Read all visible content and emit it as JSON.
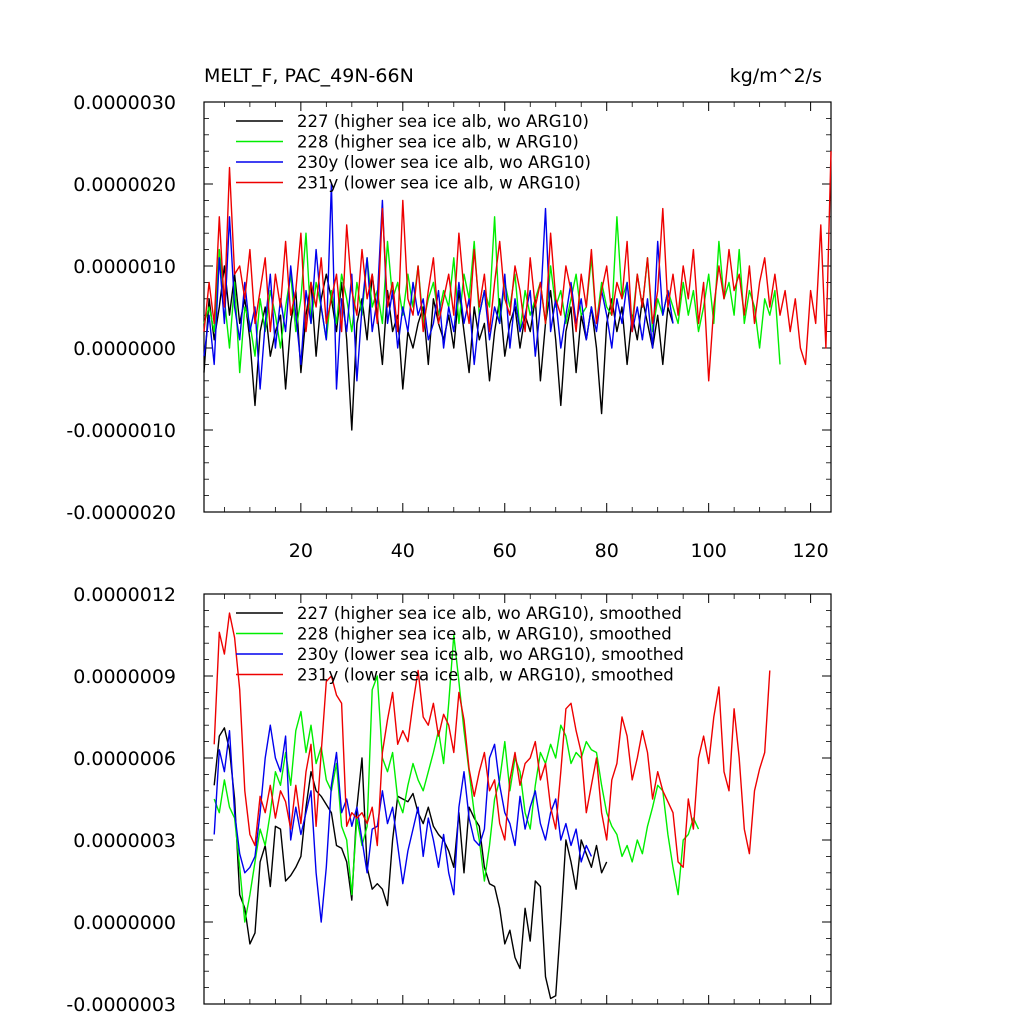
{
  "chart_data": [
    {
      "type": "line",
      "title": "MELT_F, PAC_49N-66N",
      "units": "kg/m^2/s",
      "xlim": [
        1,
        124
      ],
      "ylim": [
        -2e-06,
        3e-06
      ],
      "yticks": [
        "0.0000030",
        "0.0000020",
        "0.0000010",
        "0.0000000",
        "-0.0000010",
        "-0.0000020"
      ],
      "ytick_values": [
        3e-06,
        2e-06,
        1e-06,
        0,
        -1e-06,
        -2e-06
      ],
      "xticks": [
        "20",
        "40",
        "60",
        "80",
        "100",
        "120"
      ],
      "xtick_values": [
        20,
        40,
        60,
        80,
        100,
        120
      ],
      "legend": [
        "227 (higher sea ice alb, wo ARG10)",
        "228 (higher sea ice alb, w ARG10)",
        "230y (lower sea ice alb, wo ARG10)",
        "231y (lower sea ice alb, w ARG10)"
      ],
      "series": [
        {
          "name": "227",
          "color": "#000000",
          "x_start": 1,
          "values": [
            -0.3,
            0.6,
            0.1,
            0.5,
            1.0,
            0.4,
            0.9,
            0.3,
            0.6,
            0.1,
            -0.7,
            0.2,
            0.5,
            -0.1,
            0.2,
            0.4,
            -0.5,
            0.3,
            0.7,
            -0.3,
            0.4,
            0.8,
            -0.1,
            0.6,
            0.9,
            0.6,
            0.2,
            0.8,
            0.1,
            -1.0,
            0.3,
            0.6,
            0.1,
            0.9,
            0.4,
            -0.2,
            0.7,
            0.2,
            0.4,
            -0.5,
            0.2,
            0.0,
            0.3,
            0.5,
            -0.2,
            0.6,
            0.3,
            0.1,
            0.4,
            0.0,
            0.7,
            0.2,
            -0.3,
            0.5,
            0.1,
            0.3,
            -0.4,
            0.2,
            0.6,
            -0.1,
            0.3,
            0.5,
            0.0,
            0.4,
            0.2,
            0.6,
            -0.4,
            0.3,
            0.7,
            0.1,
            -0.7,
            0.2,
            0.5,
            -0.3,
            0.4,
            0.1,
            0.5,
            0.0,
            -0.8,
            0.3,
            0.6,
            0.2,
            0.5,
            -0.2,
            0.4,
            0.1,
            0.6,
            0.3,
            0.0,
            0.4,
            -0.2,
            0.5,
            0.3
          ]
        },
        {
          "name": "228",
          "color": "#00ee00",
          "x_start": 1,
          "values": [
            0.3,
            0.5,
            0.2,
            1.2,
            0.6,
            0.0,
            0.8,
            -0.3,
            0.5,
            0.3,
            -0.1,
            0.6,
            0.2,
            0.7,
            0.4,
            0.0,
            0.5,
            0.9,
            0.2,
            0.6,
            1.4,
            0.3,
            0.8,
            0.5,
            0.1,
            0.7,
            0.3,
            0.9,
            0.6,
            0.2,
            0.8,
            0.4,
            1.1,
            0.5,
            0.7,
            0.3,
            1.3,
            0.6,
            0.8,
            0.4,
            0.9,
            0.5,
            1.0,
            0.3,
            0.6,
            0.8,
            0.4,
            0.7,
            0.5,
            1.1,
            0.3,
            0.9,
            0.6,
            1.3,
            0.4,
            0.7,
            0.5,
            1.6,
            0.3,
            0.8,
            0.5,
            0.9,
            0.2,
            0.7,
            0.4,
            0.6,
            0.8,
            0.3,
            1.0,
            0.5,
            0.7,
            0.3,
            0.6,
            0.9,
            0.4,
            0.5,
            1.1,
            0.3,
            0.8,
            0.5,
            0.4,
            1.6,
            0.6,
            0.8,
            0.3,
            0.9,
            0.5,
            1.1,
            0.2,
            0.6,
            0.4,
            0.7,
            0.5,
            0.3,
            0.8,
            0.4,
            0.7,
            0.2,
            0.5,
            0.9,
            0.3,
            1.3,
            0.6,
            0.8,
            0.4,
            1.2,
            0.3,
            0.7,
            0.5,
            0.0,
            0.6,
            0.4,
            0.7,
            -0.2
          ]
        },
        {
          "name": "230y",
          "color": "#0000ee",
          "x_start": 1,
          "values": [
            -0.1,
            0.4,
            -0.2,
            1.1,
            0.3,
            1.6,
            0.5,
            0.1,
            0.8,
            0.2,
            0.5,
            -0.5,
            0.3,
            0.9,
            0.0,
            0.6,
            0.2,
            1.0,
            0.4,
            -0.2,
            0.7,
            0.3,
            1.2,
            0.5,
            0.1,
            2.0,
            -0.5,
            0.6,
            0.2,
            0.9,
            -0.4,
            0.5,
            1.1,
            0.2,
            0.6,
            1.8,
            0.3,
            0.7,
            0.0,
            0.5,
            0.2,
            0.8,
            0.4,
            0.6,
            0.1,
            0.3,
            0.7,
            0.0,
            0.5,
            0.2,
            0.8,
            0.3,
            0.6,
            -0.2,
            0.4,
            0.7,
            0.1,
            0.5,
            0.3,
            0.9,
            0.0,
            0.6,
            0.2,
            0.4,
            0.7,
            -0.1,
            0.5,
            1.7,
            0.2,
            0.6,
            0.0,
            0.4,
            0.8,
            0.3,
            0.6,
            0.1,
            0.5,
            0.2,
            0.7,
            0.4,
            0.0,
            0.6,
            0.3,
            0.8,
            0.2,
            0.5,
            0.1,
            0.6,
            0.0,
            1.3,
            0.4,
            0.7,
            0.3
          ]
        },
        {
          "name": "231y",
          "color": "#ee0000",
          "x_start": 1,
          "values": [
            0.2,
            0.8,
            0.3,
            1.6,
            0.5,
            2.2,
            0.9,
            1.0,
            0.6,
            1.2,
            0.3,
            0.7,
            1.1,
            0.2,
            0.9,
            0.5,
            1.3,
            0.4,
            0.7,
            1.4,
            0.2,
            0.8,
            0.5,
            1.1,
            0.3,
            0.6,
            0.9,
            0.2,
            1.5,
            0.7,
            0.4,
            1.2,
            0.6,
            0.9,
            0.3,
            1.7,
            0.5,
            0.8,
            0.2,
            1.8,
            0.6,
            0.4,
            1.0,
            0.2,
            0.7,
            1.1,
            0.3,
            0.6,
            0.9,
            0.4,
            1.4,
            0.7,
            0.3,
            1.2,
            0.5,
            0.9,
            0.2,
            0.8,
            1.3,
            0.6,
            0.4,
            1.0,
            0.7,
            0.2,
            1.1,
            0.5,
            0.8,
            0.3,
            1.4,
            0.6,
            0.4,
            1.0,
            0.7,
            0.2,
            0.9,
            0.5,
            1.2,
            0.3,
            0.7,
            1.0,
            0.4,
            0.8,
            0.6,
            1.3,
            0.2,
            0.9,
            0.5,
            1.1,
            0.3,
            0.7,
            1.7,
            0.5,
            0.9,
            0.4,
            1.0,
            0.6,
            1.2,
            0.3,
            0.8,
            -0.4,
            0.5,
            1.0,
            0.6,
            1.2,
            0.7,
            0.9,
            0.4,
            1.0,
            0.3,
            0.8,
            1.1,
            0.5,
            0.9,
            0.4,
            0.7,
            0.2,
            0.6,
            0.0,
            -0.2,
            0.7,
            0.3,
            1.5,
            0.0,
            2.4
          ]
        }
      ],
      "value_scale": 1e-06
    },
    {
      "type": "line",
      "title": "",
      "xlim": [
        1,
        124
      ],
      "ylim": [
        -3e-07,
        1.2e-06
      ],
      "yticks": [
        "0.0000012",
        "0.0000009",
        "0.0000006",
        "0.0000003",
        "0.0000000",
        "-0.0000003"
      ],
      "ytick_values": [
        1.2e-06,
        9e-07,
        6e-07,
        3e-07,
        0,
        -3e-07
      ],
      "legend": [
        "227 (higher sea ice alb, wo ARG10), smoothed",
        "228 (higher sea ice alb, w ARG10), smoothed",
        "230y (lower sea ice alb, wo ARG10), smoothed",
        "231y (lower sea ice alb, w ARG10), smoothed"
      ],
      "series": [
        {
          "name": "227 smoothed",
          "color": "#000000",
          "x_start": 3,
          "values": [
            0.5,
            0.68,
            0.71,
            0.63,
            0.45,
            0.1,
            0.05,
            -0.08,
            -0.04,
            0.22,
            0.28,
            0.13,
            0.35,
            0.34,
            0.15,
            0.17,
            0.2,
            0.24,
            0.42,
            0.55,
            0.48,
            0.46,
            0.43,
            0.4,
            0.28,
            0.27,
            0.22,
            0.08,
            0.42,
            0.6,
            0.2,
            0.12,
            0.14,
            0.12,
            0.06,
            0.3,
            0.46,
            0.45,
            0.44,
            0.47,
            0.4,
            0.36,
            0.42,
            0.35,
            0.32,
            0.3,
            0.26,
            0.2,
            0.4,
            0.18,
            0.42,
            0.38,
            0.35,
            0.2,
            0.14,
            0.13,
            0.05,
            -0.08,
            -0.03,
            -0.13,
            -0.17,
            0.05,
            -0.07,
            0.15,
            0.13,
            -0.2,
            -0.28,
            -0.27,
            0.0,
            0.3,
            0.22,
            0.12,
            0.3,
            0.25,
            0.2,
            0.28,
            0.18,
            0.22
          ]
        },
        {
          "name": "228 smoothed",
          "color": "#00ee00",
          "x_start": 3,
          "values": [
            0.45,
            0.4,
            0.52,
            0.42,
            0.38,
            0.2,
            0.0,
            0.1,
            0.22,
            0.34,
            0.28,
            0.4,
            0.55,
            0.5,
            0.62,
            0.5,
            0.7,
            0.77,
            0.62,
            0.72,
            0.58,
            0.64,
            0.52,
            0.48,
            0.58,
            0.35,
            0.3,
            0.1,
            0.38,
            0.28,
            0.35,
            0.85,
            0.9,
            0.6,
            0.55,
            0.62,
            0.45,
            0.4,
            0.5,
            0.58,
            0.52,
            0.48,
            0.55,
            0.62,
            0.7,
            0.58,
            0.8,
            1.05,
            0.88,
            0.7,
            0.55,
            0.4,
            0.3,
            0.15,
            0.28,
            0.45,
            0.52,
            0.66,
            0.48,
            0.6,
            0.55,
            0.4,
            0.34,
            0.5,
            0.62,
            0.58,
            0.65,
            0.6,
            0.72,
            0.68,
            0.58,
            0.62,
            0.6,
            0.66,
            0.63,
            0.62,
            0.5,
            0.4,
            0.35,
            0.32,
            0.24,
            0.28,
            0.22,
            0.3,
            0.25,
            0.35,
            0.42,
            0.5,
            0.48,
            0.32,
            0.2,
            0.1,
            0.3,
            0.32,
            0.38,
            0.34
          ]
        },
        {
          "name": "230y smoothed",
          "color": "#0000ee",
          "x_start": 3,
          "values": [
            0.32,
            0.63,
            0.55,
            0.7,
            0.4,
            0.25,
            0.18,
            0.2,
            0.24,
            0.4,
            0.6,
            0.72,
            0.6,
            0.55,
            0.68,
            0.3,
            0.42,
            0.32,
            0.4,
            0.48,
            0.18,
            0.0,
            0.2,
            0.5,
            0.62,
            0.4,
            0.45,
            0.35,
            0.42,
            0.3,
            0.18,
            0.34,
            0.35,
            0.48,
            0.36,
            0.42,
            0.28,
            0.14,
            0.26,
            0.34,
            0.42,
            0.24,
            0.38,
            0.3,
            0.2,
            0.32,
            0.18,
            0.1,
            0.42,
            0.55,
            0.38,
            0.3,
            0.28,
            0.34,
            0.6,
            0.65,
            0.5,
            0.4,
            0.36,
            0.28,
            0.46,
            0.34,
            0.42,
            0.48,
            0.36,
            0.3,
            0.4,
            0.45,
            0.3,
            0.36,
            0.28,
            0.34,
            0.22,
            0.28,
            0.24
          ]
        },
        {
          "name": "231y smoothed",
          "color": "#ee0000",
          "x_start": 3,
          "values": [
            0.65,
            1.06,
            0.98,
            1.13,
            1.04,
            0.85,
            0.48,
            0.32,
            0.28,
            0.46,
            0.4,
            0.5,
            0.38,
            0.48,
            0.44,
            0.34,
            0.5,
            0.36,
            0.55,
            0.65,
            0.35,
            0.62,
            0.88,
            0.9,
            0.83,
            0.8,
            0.35,
            0.4,
            0.38,
            0.4,
            0.36,
            0.42,
            0.28,
            0.62,
            0.74,
            0.84,
            0.65,
            0.7,
            0.66,
            0.8,
            0.92,
            0.75,
            0.72,
            0.8,
            0.68,
            0.76,
            0.72,
            0.62,
            0.84,
            0.74,
            0.56,
            0.46,
            0.55,
            0.62,
            0.48,
            0.52,
            0.36,
            0.3,
            0.52,
            0.62,
            0.5,
            0.58,
            0.6,
            0.66,
            0.52,
            0.58,
            0.42,
            0.34,
            0.55,
            0.78,
            0.8,
            0.7,
            0.62,
            0.4,
            0.5,
            0.6,
            0.4,
            0.3,
            0.52,
            0.58,
            0.75,
            0.68,
            0.52,
            0.6,
            0.7,
            0.62,
            0.45,
            0.55,
            0.48,
            0.44,
            0.4,
            0.22,
            0.2,
            0.45,
            0.34,
            0.6,
            0.68,
            0.58,
            0.75,
            0.86,
            0.55,
            0.48,
            0.78,
            0.6,
            0.34,
            0.25,
            0.48,
            0.56,
            0.62,
            0.92
          ]
        }
      ],
      "value_scale": 1e-06
    }
  ]
}
